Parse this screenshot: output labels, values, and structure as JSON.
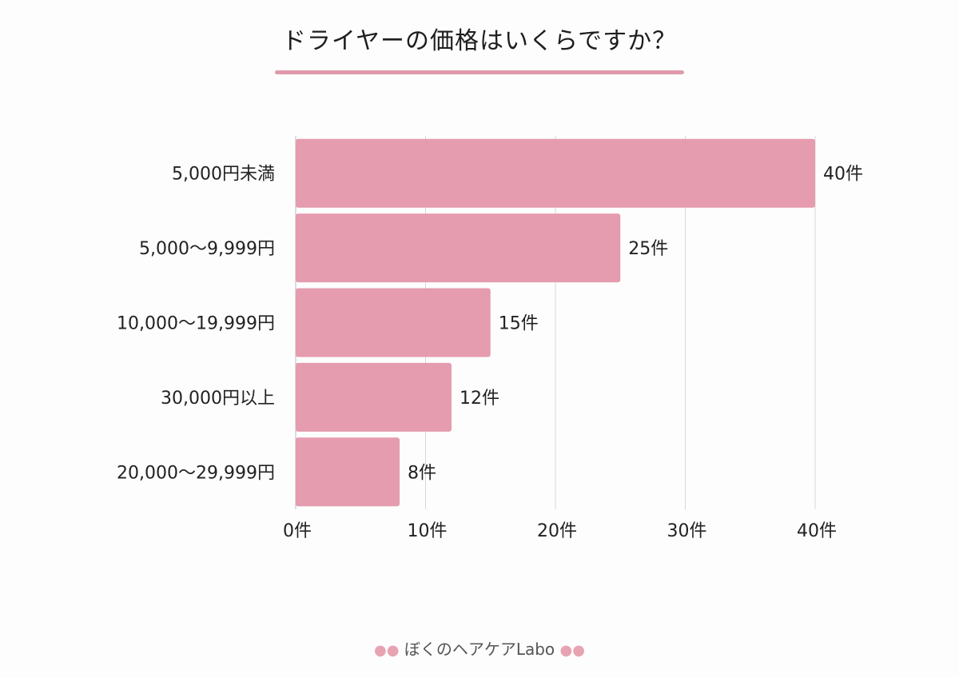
{
  "chart_data": {
    "type": "bar",
    "orientation": "horizontal",
    "title": "ドライヤーの価格はいくらですか？",
    "categories": [
      "5,000円未満",
      "5,000〜9,999円",
      "10,000〜19,999円",
      "30,000円以上",
      "20,000〜29,999円"
    ],
    "values": [
      40,
      25,
      15,
      12,
      8
    ],
    "value_labels": [
      "40件",
      "25件",
      "15件",
      "12件",
      "8件"
    ],
    "x_ticks": [
      0,
      10,
      20,
      30,
      40
    ],
    "x_tick_labels": [
      "0件",
      "10件",
      "20件",
      "30件",
      "40件"
    ],
    "xlim": [
      0,
      40
    ],
    "xlabel": "",
    "ylabel": "",
    "grid": "vertical",
    "legend": "none",
    "bar_color": "#e59cae",
    "grid_color": "#d6d6e4"
  },
  "footer": {
    "text": "ぼくのヘアケアLabo",
    "left_icon": "lips-icon",
    "right_icon": "lips-icon"
  }
}
